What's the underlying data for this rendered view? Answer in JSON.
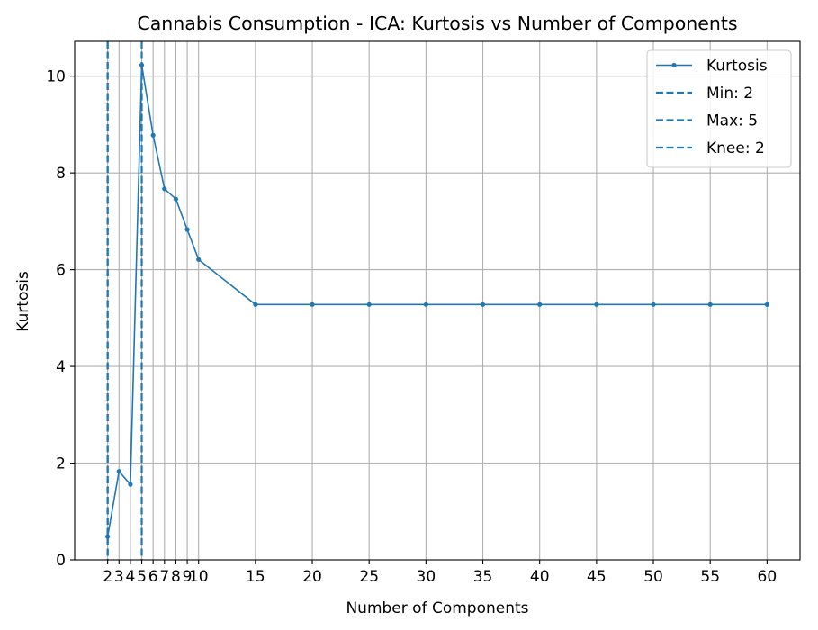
{
  "chart_data": {
    "type": "line",
    "title": "Cannabis Consumption - ICA: Kurtosis vs Number of Components",
    "xlabel": "Number of Components",
    "ylabel": "Kurtosis",
    "xlim": [
      -0.9,
      62.9
    ],
    "ylim": [
      0,
      10.72
    ],
    "grid": true,
    "legend_position": "top-right",
    "x_ticks": [
      2,
      3,
      4,
      5,
      6,
      7,
      8,
      9,
      10,
      15,
      20,
      25,
      30,
      35,
      40,
      45,
      50,
      55,
      60
    ],
    "x_tick_labels": [
      "2",
      "3",
      "4",
      "5",
      "6",
      "7",
      "8",
      "9",
      "10",
      "15",
      "20",
      "25",
      "30",
      "35",
      "40",
      "45",
      "50",
      "55",
      "60"
    ],
    "y_ticks": [
      0,
      2,
      4,
      6,
      8,
      10
    ],
    "y_tick_labels": [
      "0",
      "2",
      "4",
      "6",
      "8",
      "10"
    ],
    "series": [
      {
        "name": "Kurtosis",
        "color": "#1f77b4",
        "x": [
          2,
          3,
          4,
          5,
          6,
          7,
          8,
          9,
          10,
          15,
          20,
          25,
          30,
          35,
          40,
          45,
          50,
          55,
          60
        ],
        "values": [
          0.48,
          1.83,
          1.56,
          10.23,
          8.78,
          7.67,
          7.46,
          6.83,
          6.21,
          5.28,
          5.28,
          5.28,
          5.28,
          5.28,
          5.28,
          5.28,
          5.28,
          5.28,
          5.28
        ]
      }
    ],
    "vlines": [
      {
        "name": "Min: 2",
        "x": 2,
        "color": "#1f77b4"
      },
      {
        "name": "Max: 5",
        "x": 5,
        "color": "#1f77b4"
      },
      {
        "name": "Knee: 2",
        "x": 2,
        "color": "#1f77b4"
      }
    ]
  }
}
